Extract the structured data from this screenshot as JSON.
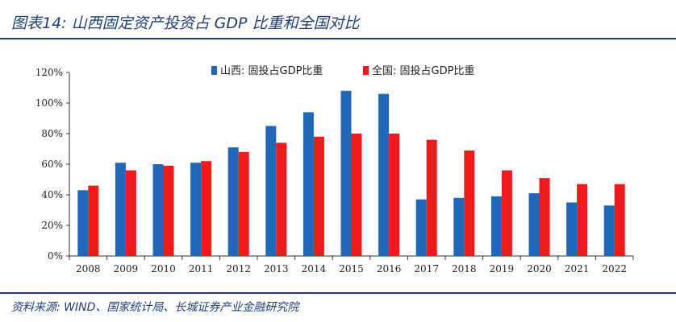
{
  "header": {
    "title": "图表14:  山西固定资产投资占 GDP 比重和全国对比"
  },
  "footer": {
    "source": "资料来源: WIND、国家统计局、长城证券产业金融研究院"
  },
  "colors": {
    "shanxi": "#1f67b8",
    "national": "#ef1b1b",
    "accent": "#1f3e78"
  },
  "chart_data": {
    "type": "bar",
    "categories": [
      "2008",
      "2009",
      "2010",
      "2011",
      "2012",
      "2013",
      "2014",
      "2015",
      "2016",
      "2017",
      "2018",
      "2019",
      "2020",
      "2021",
      "2022"
    ],
    "series": [
      {
        "name": "山西: 固投占GDP比重",
        "values": [
          43,
          61,
          60,
          61,
          71,
          85,
          94,
          108,
          106,
          37,
          38,
          39,
          41,
          35,
          33
        ]
      },
      {
        "name": "全国: 固投占GDP比重",
        "values": [
          46,
          56,
          59,
          62,
          68,
          74,
          78,
          80,
          80,
          76,
          69,
          56,
          51,
          47,
          47
        ]
      }
    ],
    "ylim": [
      0,
      120
    ],
    "yticks": [
      "0%",
      "20%",
      "40%",
      "60%",
      "80%",
      "100%",
      "120%"
    ],
    "legend": "top-center",
    "grid": false
  }
}
